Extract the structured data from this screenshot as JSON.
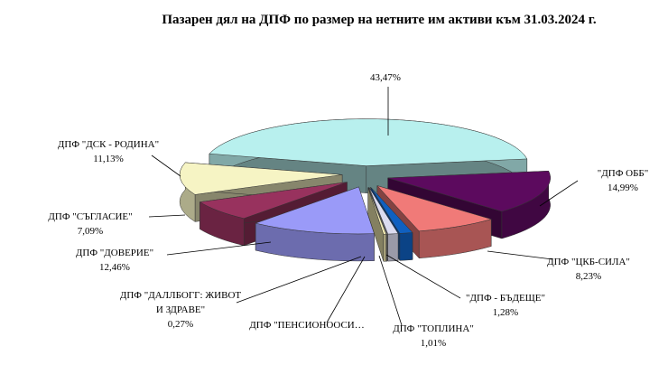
{
  "chart_data": {
    "type": "pie3d",
    "title": "Пазарен дял на ДПФ по размер на нетните им активи към 31.03.2024 г.",
    "categories": [
      null,
      "\"ДПФ ОББ\"",
      "ДПФ \"ЦКБ-СИЛА\"",
      "\"ДПФ - БЪДЕЩЕ\"",
      "ДПФ \"ТОПЛИНА\"",
      "ДПФ \"ПЕНСИОНООСИ…",
      "ДПФ \"ДАЛЛБОГГ: ЖИВОТ И ЗДРАВЕ\"",
      "ДПФ \"ДОВЕРИЕ\"",
      "ДПФ \"СЪГЛАСИЕ\"",
      "ДПФ \"ДСК - РОДИНА\""
    ],
    "values": [
      43.47,
      14.99,
      8.23,
      1.28,
      1.01,
      0.07,
      0.27,
      12.46,
      7.09,
      11.13
    ],
    "value_labels": [
      "43,47%",
      "14,99%",
      "8,23%",
      "1,28%",
      "1,01%",
      null,
      "0,27%",
      "12,46%",
      "7,09%",
      "11,13%"
    ],
    "colors": [
      "#b8f0ee",
      "#5c0a5e",
      "#f07a78",
      "#1060c0",
      "#dcdcf0",
      "#f4f4f4",
      "#f0e8b0",
      "#9a9af8",
      "#98325e",
      "#f6f4c4"
    ]
  }
}
